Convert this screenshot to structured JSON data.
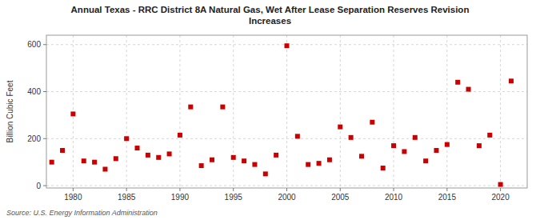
{
  "chart_data": {
    "type": "scatter",
    "title": "Annual Texas - RRC District 8A Natural Gas, Wet After Lease Separation Reserves Revision\nIncreases",
    "ylabel": "Billion Cubic Feet",
    "annotations": [
      "Source: U.S. Energy Information Administration"
    ],
    "x": [
      1978,
      1979,
      1980,
      1981,
      1982,
      1983,
      1984,
      1985,
      1986,
      1987,
      1988,
      1989,
      1990,
      1991,
      1992,
      1993,
      1994,
      1995,
      1996,
      1997,
      1998,
      1999,
      2000,
      2001,
      2002,
      2003,
      2004,
      2005,
      2006,
      2007,
      2008,
      2009,
      2010,
      2011,
      2012,
      2013,
      2014,
      2015,
      2016,
      2017,
      2018,
      2019,
      2020,
      2021
    ],
    "values": [
      100,
      150,
      305,
      105,
      100,
      70,
      115,
      200,
      160,
      130,
      120,
      135,
      215,
      335,
      85,
      110,
      335,
      120,
      105,
      90,
      50,
      130,
      595,
      210,
      90,
      95,
      110,
      250,
      205,
      125,
      270,
      75,
      170,
      145,
      205,
      105,
      150,
      175,
      440,
      410,
      170,
      215,
      5,
      445
    ],
    "color": "#cc0000",
    "marker": "square",
    "xlim": [
      1977.5,
      2022.5
    ],
    "ylim": [
      -10,
      640
    ],
    "xticks": [
      1980,
      1985,
      1990,
      1995,
      2000,
      2005,
      2010,
      2015,
      2020
    ],
    "yticks": [
      0,
      200,
      400,
      600
    ],
    "grid": true
  }
}
